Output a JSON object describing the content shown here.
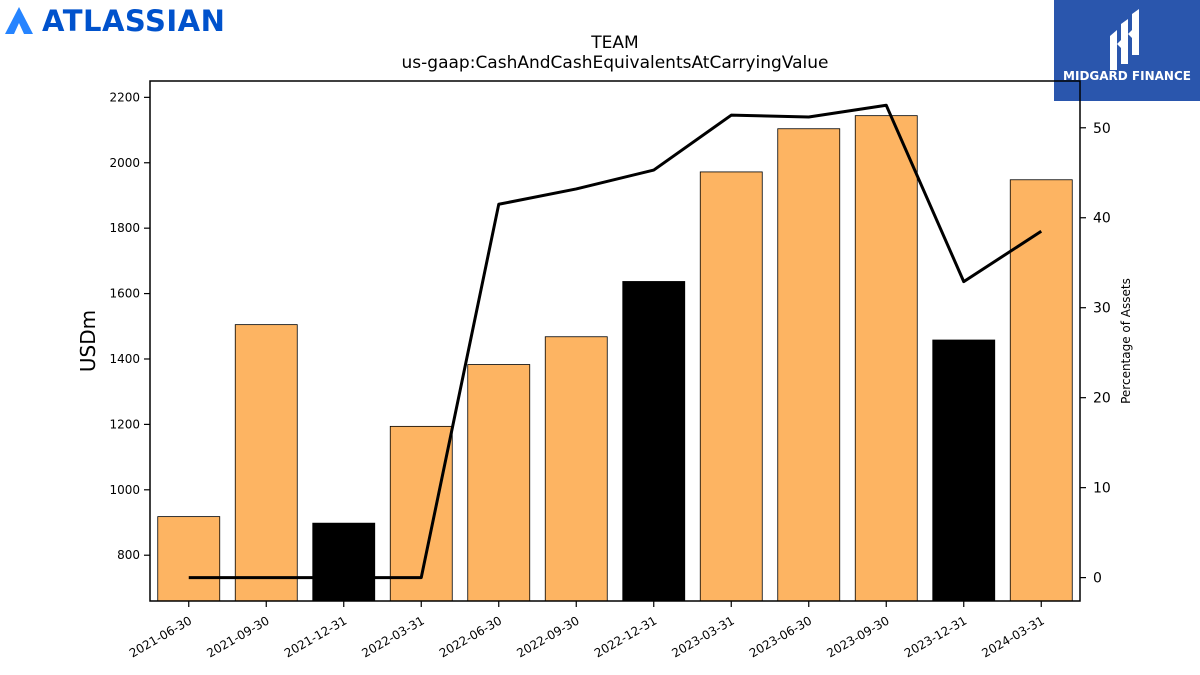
{
  "brand": {
    "name": "ATLASSIAN",
    "color": "#0052cc"
  },
  "partner": {
    "name": "MIDGARD FINANCE",
    "color": "#2a56ad"
  },
  "chart_data": {
    "type": "bar",
    "title": "TEAM",
    "subtitle": "us-gaap:CashAndCashEquivalentsAtCarryingValue",
    "ylabel": "USDm",
    "y2label": "Percentage of Assets",
    "categories": [
      "2021-06-30",
      "2021-09-30",
      "2021-12-31",
      "2022-03-31",
      "2022-06-30",
      "2022-09-30",
      "2022-12-31",
      "2023-03-31",
      "2023-06-30",
      "2023-09-30",
      "2023-12-31",
      "2024-03-31"
    ],
    "values": [
      918,
      1505,
      898,
      1194,
      1383,
      1468,
      1637,
      1972,
      2104,
      2144,
      1458,
      1948
    ],
    "bar_colors": [
      "#fdb462",
      "#fdb462",
      "#000000",
      "#fdb462",
      "#fdb462",
      "#fdb462",
      "#000000",
      "#fdb462",
      "#fdb462",
      "#fdb462",
      "#000000",
      "#fdb462"
    ],
    "line_series": {
      "values": [
        0,
        0,
        0,
        0,
        41.5,
        43.2,
        45.3,
        51.4,
        51.2,
        52.5,
        32.9,
        38.5
      ]
    },
    "ylim": [
      660,
      2250
    ],
    "y2lim": [
      -2.6,
      55.2
    ],
    "yticks": [
      800,
      1000,
      1200,
      1400,
      1600,
      1800,
      2000,
      2200
    ],
    "y2ticks": [
      0,
      10,
      20,
      30,
      40,
      50
    ]
  }
}
